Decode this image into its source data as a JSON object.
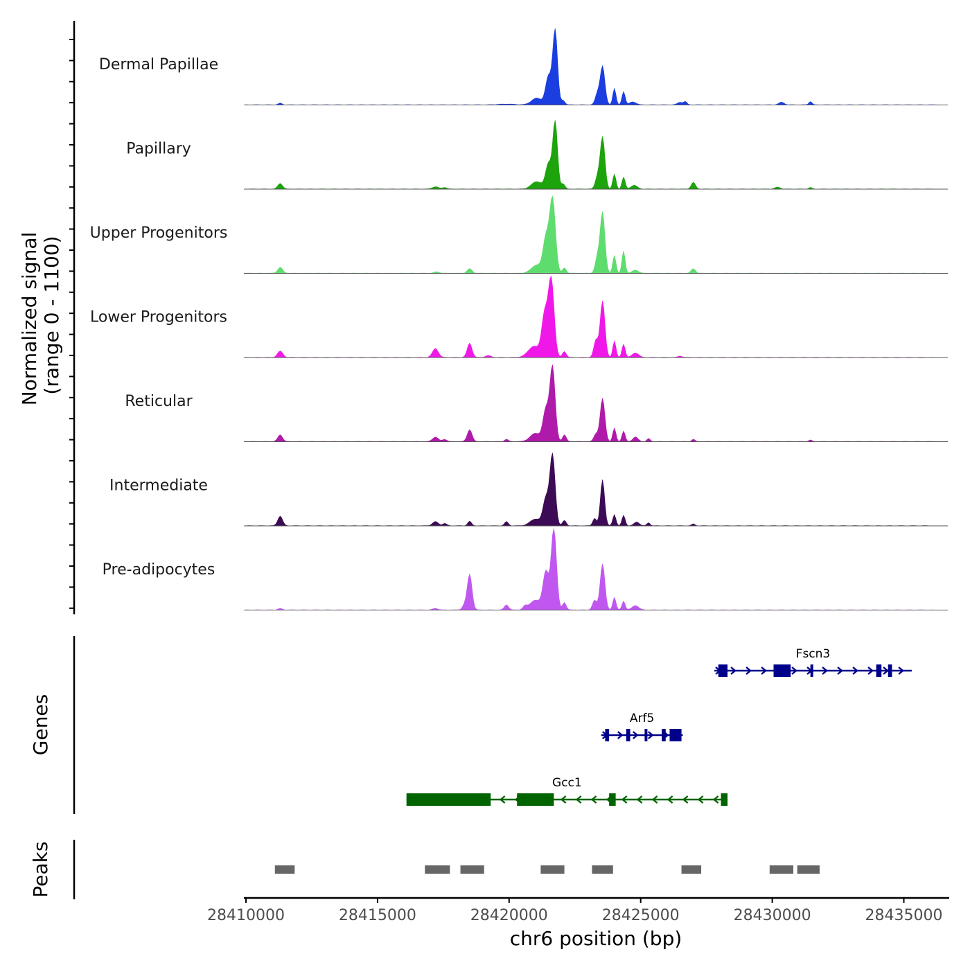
{
  "chart_data": {
    "type": "area",
    "title": "",
    "chrom": "chr6",
    "xlabel": "chr6 position (bp)",
    "ylabel_line1": "Normalized signal",
    "ylabel_line2": "(range 0 - 1100)",
    "xlim": [
      28410000,
      28436000
    ],
    "ylim": [
      0,
      1100
    ],
    "x_ticks": [
      28410000,
      28415000,
      28420000,
      28425000,
      28430000,
      28435000
    ],
    "x_tick_labels": [
      "28410000",
      "28415000",
      "28420000",
      "28425000",
      "28430000",
      "28435000"
    ],
    "series": [
      {
        "name": "Dermal Papillae",
        "color": "#1a3ee0",
        "peaks": [
          [
            28421750,
            1000,
            90
          ],
          [
            28421500,
            380,
            110
          ],
          [
            28421050,
            90,
            200
          ],
          [
            28422050,
            60,
            70
          ],
          [
            28423550,
            520,
            90
          ],
          [
            28423350,
            140,
            80
          ],
          [
            28424000,
            220,
            60
          ],
          [
            28424350,
            180,
            60
          ],
          [
            28424700,
            40,
            120
          ],
          [
            28411300,
            22,
            70
          ],
          [
            28426500,
            35,
            100
          ],
          [
            28426700,
            40,
            60
          ],
          [
            28430350,
            35,
            100
          ],
          [
            28431450,
            45,
            60
          ],
          [
            28419900,
            10,
            300
          ]
        ]
      },
      {
        "name": "Papillary",
        "color": "#1da30c",
        "peaks": [
          [
            28411300,
            75,
            90
          ],
          [
            28417200,
            30,
            120
          ],
          [
            28417550,
            22,
            80
          ],
          [
            28421750,
            900,
            90
          ],
          [
            28421500,
            340,
            110
          ],
          [
            28421050,
            100,
            200
          ],
          [
            28422050,
            70,
            70
          ],
          [
            28423550,
            700,
            90
          ],
          [
            28423350,
            150,
            80
          ],
          [
            28424000,
            200,
            60
          ],
          [
            28424350,
            160,
            60
          ],
          [
            28424750,
            50,
            120
          ],
          [
            28427000,
            90,
            80
          ],
          [
            28430200,
            25,
            100
          ],
          [
            28431450,
            20,
            60
          ]
        ]
      },
      {
        "name": "Upper Progenitors",
        "color": "#5fdc6e",
        "peaks": [
          [
            28411300,
            80,
            90
          ],
          [
            28418500,
            60,
            90
          ],
          [
            28421650,
            1000,
            110
          ],
          [
            28421400,
            450,
            110
          ],
          [
            28421050,
            110,
            200
          ],
          [
            28422100,
            70,
            70
          ],
          [
            28423550,
            820,
            90
          ],
          [
            28423350,
            200,
            80
          ],
          [
            28424000,
            240,
            60
          ],
          [
            28424350,
            300,
            60
          ],
          [
            28424800,
            40,
            120
          ],
          [
            28427000,
            60,
            80
          ],
          [
            28417250,
            18,
            100
          ]
        ]
      },
      {
        "name": "Lower Progenitors",
        "color": "#f018e8",
        "peaks": [
          [
            28411300,
            85,
            100
          ],
          [
            28417200,
            120,
            110
          ],
          [
            28418500,
            190,
            90
          ],
          [
            28421600,
            1050,
            110
          ],
          [
            28421350,
            550,
            110
          ],
          [
            28420950,
            150,
            220
          ],
          [
            28422100,
            80,
            70
          ],
          [
            28423550,
            760,
            90
          ],
          [
            28423300,
            230,
            80
          ],
          [
            28424000,
            220,
            60
          ],
          [
            28424350,
            180,
            60
          ],
          [
            28424800,
            60,
            120
          ],
          [
            28419200,
            25,
            100
          ],
          [
            28426500,
            18,
            80
          ]
        ]
      },
      {
        "name": "Reticular",
        "color": "#b01aaa",
        "peaks": [
          [
            28411300,
            90,
            90
          ],
          [
            28417200,
            60,
            110
          ],
          [
            28417550,
            30,
            80
          ],
          [
            28418500,
            160,
            90
          ],
          [
            28419900,
            30,
            70
          ],
          [
            28421650,
            1000,
            100
          ],
          [
            28421400,
            420,
            110
          ],
          [
            28421000,
            110,
            200
          ],
          [
            28422100,
            90,
            70
          ],
          [
            28423550,
            580,
            90
          ],
          [
            28423300,
            100,
            80
          ],
          [
            28424000,
            180,
            60
          ],
          [
            28424350,
            140,
            60
          ],
          [
            28424800,
            60,
            100
          ],
          [
            28425300,
            40,
            60
          ],
          [
            28427000,
            30,
            60
          ],
          [
            28431450,
            20,
            60
          ]
        ]
      },
      {
        "name": "Intermediate",
        "color": "#3d0b55",
        "peaks": [
          [
            28411300,
            130,
            90
          ],
          [
            28417200,
            55,
            110
          ],
          [
            28417550,
            30,
            80
          ],
          [
            28418500,
            60,
            70
          ],
          [
            28419900,
            55,
            70
          ],
          [
            28421650,
            950,
            100
          ],
          [
            28421400,
            360,
            110
          ],
          [
            28421000,
            90,
            200
          ],
          [
            28422100,
            70,
            70
          ],
          [
            28423550,
            620,
            80
          ],
          [
            28423250,
            100,
            70
          ],
          [
            28424000,
            150,
            60
          ],
          [
            28424350,
            140,
            60
          ],
          [
            28424850,
            50,
            100
          ],
          [
            28425300,
            40,
            60
          ],
          [
            28427000,
            25,
            60
          ]
        ]
      },
      {
        "name": "Pre-adipocytes",
        "color": "#c058ef",
        "peaks": [
          [
            28418500,
            480,
            90
          ],
          [
            28418300,
            60,
            80
          ],
          [
            28419900,
            70,
            80
          ],
          [
            28420600,
            40,
            70
          ],
          [
            28421700,
            1100,
            100
          ],
          [
            28421400,
            500,
            110
          ],
          [
            28421000,
            130,
            220
          ],
          [
            28422100,
            100,
            70
          ],
          [
            28423550,
            620,
            90
          ],
          [
            28423250,
            130,
            80
          ],
          [
            28424000,
            170,
            60
          ],
          [
            28424350,
            120,
            60
          ],
          [
            28424800,
            60,
            120
          ],
          [
            28417200,
            20,
            100
          ],
          [
            28411300,
            18,
            80
          ]
        ]
      }
    ],
    "genes_title": "Genes",
    "genes": [
      {
        "name": "Fscn3",
        "strand": "+",
        "color": "#00008b",
        "start": 28427800,
        "end": 28435300,
        "row": 0,
        "exons": [
          [
            28427950,
            28428300
          ],
          [
            28430050,
            28430700
          ],
          [
            28431450,
            28431550
          ],
          [
            28433950,
            28434150
          ],
          [
            28434400,
            28434550
          ]
        ]
      },
      {
        "name": "Arf5",
        "strand": "+",
        "color": "#00008b",
        "start": 28423500,
        "end": 28426600,
        "row": 1,
        "exons": [
          [
            28423650,
            28423800
          ],
          [
            28424450,
            28424600
          ],
          [
            28425150,
            28425250
          ],
          [
            28425800,
            28425950
          ],
          [
            28426100,
            28426550
          ]
        ]
      },
      {
        "name": "Gcc1",
        "strand": "-",
        "color": "#006400",
        "start": 28416100,
        "end": 28428300,
        "row": 2,
        "exons": [
          [
            28416100,
            28419300
          ],
          [
            28420300,
            28421700
          ],
          [
            28423800,
            28424050
          ],
          [
            28428050,
            28428300
          ]
        ]
      }
    ],
    "peaks_title": "Peaks",
    "peak_color": "#666666",
    "peak_regions": [
      [
        28411100,
        28411850
      ],
      [
        28416800,
        28417750
      ],
      [
        28418150,
        28419050
      ],
      [
        28421200,
        28422100
      ],
      [
        28423150,
        28423950
      ],
      [
        28426550,
        28427300
      ],
      [
        28429900,
        28430800
      ],
      [
        28430950,
        28431800
      ]
    ]
  }
}
